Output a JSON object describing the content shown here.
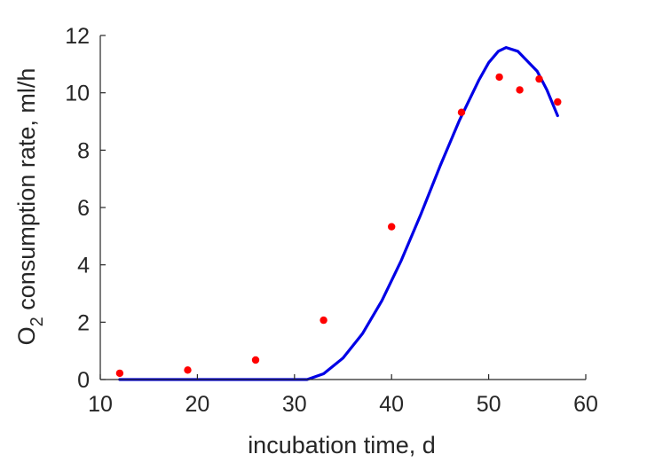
{
  "chart_data": {
    "type": "scatter",
    "title": "",
    "xlabel": "incubation time, d",
    "ylabel_main": "O",
    "ylabel_sub": "2",
    "ylabel_rest": " consumption rate, ml/h",
    "xlim": [
      10,
      60
    ],
    "ylim": [
      0,
      12
    ],
    "xticks": [
      10,
      20,
      30,
      40,
      50,
      60
    ],
    "yticks": [
      0,
      2,
      4,
      6,
      8,
      10,
      12
    ],
    "grid": false,
    "series": [
      {
        "kind": "scatter",
        "color": "#ff0000",
        "x": [
          12,
          19,
          26,
          33,
          40,
          47.2,
          51.1,
          53.2,
          55.2,
          57.1
        ],
        "y": [
          0.22,
          0.33,
          0.68,
          2.07,
          5.33,
          9.32,
          10.55,
          10.1,
          10.48,
          9.68
        ]
      },
      {
        "kind": "line",
        "color": "#0000e6",
        "x": [
          12,
          20,
          30,
          31.3,
          33,
          35,
          37,
          39,
          41,
          43,
          45,
          47,
          49,
          50,
          51,
          51.8,
          53,
          55,
          56,
          57.1
        ],
        "y": [
          0,
          0,
          0,
          0,
          0.2,
          0.75,
          1.6,
          2.75,
          4.15,
          5.75,
          7.45,
          9.05,
          10.45,
          11.05,
          11.45,
          11.58,
          11.45,
          10.75,
          10.1,
          9.2
        ]
      }
    ]
  }
}
